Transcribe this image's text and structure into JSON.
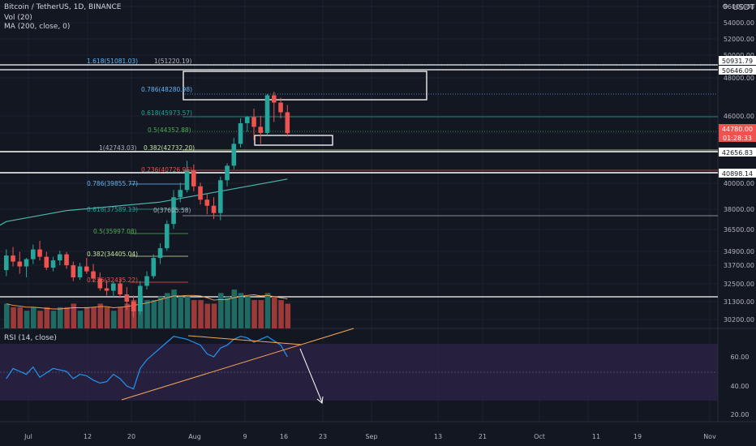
{
  "legend": {
    "symbol": "Bitcoin / TetherUS, 1D, BINANCE",
    "vol": "Vol (20)",
    "ma": "MA (200, close, 0)",
    "rsi": "RSI (14, close)"
  },
  "currency": "USDT",
  "current_price": "44780.00",
  "countdown": "01:28:33",
  "y_ticks": [
    "56000.00",
    "54000.00",
    "52000.00",
    "50000.00",
    "48000.00",
    "46000.00",
    "44000.00",
    "42000.00",
    "40000.00",
    "38000.00",
    "36500.00",
    "34900.00",
    "33700.00",
    "32500.00",
    "31300.00",
    "30200.00"
  ],
  "rsi_ticks": [
    "60.00",
    "40.00",
    "20.00"
  ],
  "x_ticks": [
    "Jul",
    "12",
    "20",
    "Aug",
    "9",
    "16",
    "23",
    "Sep",
    "13",
    "21",
    "Oct",
    "11",
    "19",
    "Nov"
  ],
  "price_tags": [
    "50931.79",
    "50646.09",
    "42656.83",
    "40898.14"
  ],
  "fib_labels_a": [
    "1.618(51081.03)",
    "1(51220.19)",
    "0.786(48280.98)",
    "0.618(45973.57)",
    "0.5(44352.88)",
    "1(42743.03)",
    "0.382(42732.20)",
    "0.236(40726.95)"
  ],
  "fib_labels_b": [
    "0.786(39855.77)",
    "0.618(37589.13)",
    "0(37605.58)",
    "0.5(35997.08)",
    "0.382(34405.04)",
    "0.236(32435.22)"
  ],
  "colors": {
    "up": "#26a69a",
    "down": "#ef5350",
    "bg": "#131722",
    "ma": "#4db6ac",
    "fib_blue": "#64b5f6",
    "fib_green": "#66bb6a",
    "fib_red": "#ef5350",
    "rsi_line": "#2196f3",
    "rsi_band": "#2a2142",
    "trend": "#f5a65b"
  },
  "chart_data": {
    "type": "candlestick",
    "symbol": "BTCUSDT",
    "timeframe": "1D",
    "ohlc": [
      [
        33500,
        35200,
        33000,
        34700
      ],
      [
        34700,
        35400,
        33800,
        34200
      ],
      [
        34200,
        35000,
        33200,
        33800
      ],
      [
        33800,
        34500,
        32900,
        34400
      ],
      [
        34400,
        35600,
        34000,
        35200
      ],
      [
        35200,
        35900,
        34300,
        34600
      ],
      [
        34600,
        35000,
        33500,
        33700
      ],
      [
        33700,
        34600,
        33400,
        34300
      ],
      [
        34300,
        35100,
        33900,
        34800
      ],
      [
        34800,
        35000,
        33600,
        33900
      ],
      [
        33900,
        34200,
        32600,
        32900
      ],
      [
        32900,
        34100,
        32700,
        33800
      ],
      [
        33800,
        34500,
        33200,
        33400
      ],
      [
        33400,
        34000,
        32500,
        32800
      ],
      [
        32800,
        33300,
        31800,
        32000
      ],
      [
        32000,
        32700,
        31400,
        31800
      ],
      [
        31800,
        32600,
        31300,
        32400
      ],
      [
        32400,
        32800,
        31200,
        31500
      ],
      [
        31500,
        32100,
        30200,
        30900
      ],
      [
        30900,
        31400,
        29600,
        30100
      ],
      [
        30100,
        32600,
        29800,
        32200
      ],
      [
        32200,
        33400,
        31900,
        33000
      ],
      [
        33000,
        34800,
        32800,
        34500
      ],
      [
        34500,
        35700,
        34000,
        35300
      ],
      [
        35300,
        37600,
        35100,
        37300
      ],
      [
        37300,
        40100,
        36900,
        39500
      ],
      [
        39500,
        40700,
        39100,
        40100
      ],
      [
        40100,
        42500,
        39900,
        41700
      ],
      [
        41700,
        42200,
        40000,
        40400
      ],
      [
        40400,
        40700,
        38900,
        39300
      ],
      [
        39300,
        39800,
        38100,
        38800
      ],
      [
        38800,
        39500,
        37700,
        38200
      ],
      [
        38200,
        41200,
        37600,
        40900
      ],
      [
        40900,
        42300,
        40400,
        42100
      ],
      [
        42100,
        44400,
        41800,
        43900
      ],
      [
        43900,
        46000,
        43600,
        45600
      ],
      [
        45600,
        46200,
        44900,
        46100
      ],
      [
        46100,
        46800,
        44200,
        45300
      ],
      [
        45300,
        46200,
        43900,
        44800
      ],
      [
        44800,
        48000,
        44600,
        47900
      ],
      [
        47900,
        48200,
        45700,
        47300
      ],
      [
        47300,
        47700,
        46000,
        46500
      ],
      [
        46500,
        47100,
        44500,
        44780
      ]
    ],
    "volume": [
      7,
      6,
      6,
      5,
      6,
      5,
      6,
      5,
      6,
      6,
      7,
      5,
      6,
      6,
      7,
      6,
      5,
      6,
      7,
      8,
      9,
      8,
      8,
      9,
      10,
      11,
      9,
      9,
      8,
      8,
      7,
      7,
      10,
      9,
      11,
      10,
      9,
      8,
      8,
      10,
      9,
      8,
      7
    ],
    "ma200": [
      37500,
      37600,
      37700,
      37800,
      37900,
      38000,
      38100,
      38200,
      38300,
      38400,
      38450,
      38500,
      38550,
      38600,
      38650,
      38700,
      38750,
      38800,
      38850,
      38900,
      38950,
      39000,
      39050,
      39100,
      39200,
      39300,
      39400,
      39500,
      39600,
      39700,
      39800,
      39900,
      40000,
      40100,
      40200,
      40300,
      40400,
      40500,
      40600,
      40700,
      40800,
      40900,
      41000
    ],
    "rsi": [
      45,
      52,
      50,
      48,
      53,
      46,
      49,
      52,
      51,
      50,
      45,
      48,
      47,
      44,
      42,
      43,
      48,
      45,
      40,
      38,
      52,
      58,
      62,
      66,
      70,
      74,
      73,
      72,
      70,
      68,
      62,
      60,
      66,
      68,
      72,
      74,
      73,
      70,
      72,
      74,
      71,
      68,
      60
    ],
    "horizontal_levels": [
      50931.79,
      50646.09,
      42656.83,
      40898.14,
      31300
    ]
  }
}
